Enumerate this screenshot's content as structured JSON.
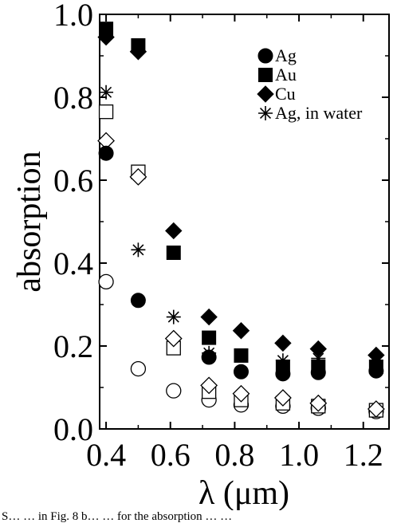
{
  "chart_data": {
    "type": "scatter",
    "xlabel": "λ (μm)",
    "ylabel": "absorption",
    "xlim": [
      0.38,
      1.28
    ],
    "ylim": [
      0.0,
      1.0
    ],
    "xticks": [
      "0.4",
      "0.6",
      "0.8",
      "1.0",
      "1.2"
    ],
    "xtick_values": [
      0.4,
      0.6,
      0.8,
      1.0,
      1.2
    ],
    "yticks": [
      "0.0",
      "0.2",
      "0.4",
      "0.6",
      "0.8",
      "1.0"
    ],
    "ytick_values": [
      0.0,
      0.2,
      0.4,
      0.6,
      0.8,
      1.0
    ],
    "legend_position": "top-right",
    "grid": false,
    "series": [
      {
        "name": "Ag",
        "marker": "circle",
        "filled": true,
        "x": [
          0.4,
          0.5,
          0.72,
          0.82,
          0.95,
          1.06,
          1.24
        ],
        "y": [
          0.665,
          0.31,
          0.173,
          0.138,
          0.133,
          0.136,
          0.14
        ]
      },
      {
        "name": "Au",
        "marker": "square",
        "filled": true,
        "x": [
          0.4,
          0.5,
          0.61,
          0.72,
          0.82,
          0.95,
          1.06,
          1.24
        ],
        "y": [
          0.965,
          0.925,
          0.425,
          0.22,
          0.177,
          0.15,
          0.15,
          0.15
        ]
      },
      {
        "name": "Cu",
        "marker": "diamond",
        "filled": true,
        "x": [
          0.4,
          0.5,
          0.61,
          0.72,
          0.82,
          0.95,
          1.06,
          1.24
        ],
        "y": [
          0.945,
          0.91,
          0.478,
          0.27,
          0.237,
          0.207,
          0.193,
          0.178
        ]
      },
      {
        "name": "Ag, in water",
        "marker": "asterisk",
        "filled": true,
        "x": [
          0.4,
          0.5,
          0.61,
          0.72,
          0.95,
          1.06
        ],
        "y": [
          0.812,
          0.432,
          0.27,
          0.183,
          0.165,
          0.17
        ]
      },
      {
        "marker": "circle",
        "filled": false,
        "x": [
          0.4,
          0.5,
          0.61,
          0.72,
          0.82,
          0.95,
          1.06,
          1.24
        ],
        "y": [
          0.355,
          0.145,
          0.092,
          0.07,
          0.058,
          0.055,
          0.05,
          0.042
        ]
      },
      {
        "marker": "square",
        "filled": false,
        "x": [
          0.4,
          0.5,
          0.61,
          0.72,
          0.82,
          0.95,
          1.06,
          1.24
        ],
        "y": [
          0.765,
          0.62,
          0.195,
          0.09,
          0.07,
          0.062,
          0.055,
          0.045
        ]
      },
      {
        "marker": "diamond",
        "filled": false,
        "x": [
          0.4,
          0.5,
          0.61,
          0.72,
          0.82,
          0.95,
          1.06,
          1.24
        ],
        "y": [
          0.695,
          0.608,
          0.218,
          0.105,
          0.085,
          0.075,
          0.062,
          0.048
        ]
      }
    ]
  },
  "caption": "S… … in Fig. 8 b… … for the absorption … …"
}
